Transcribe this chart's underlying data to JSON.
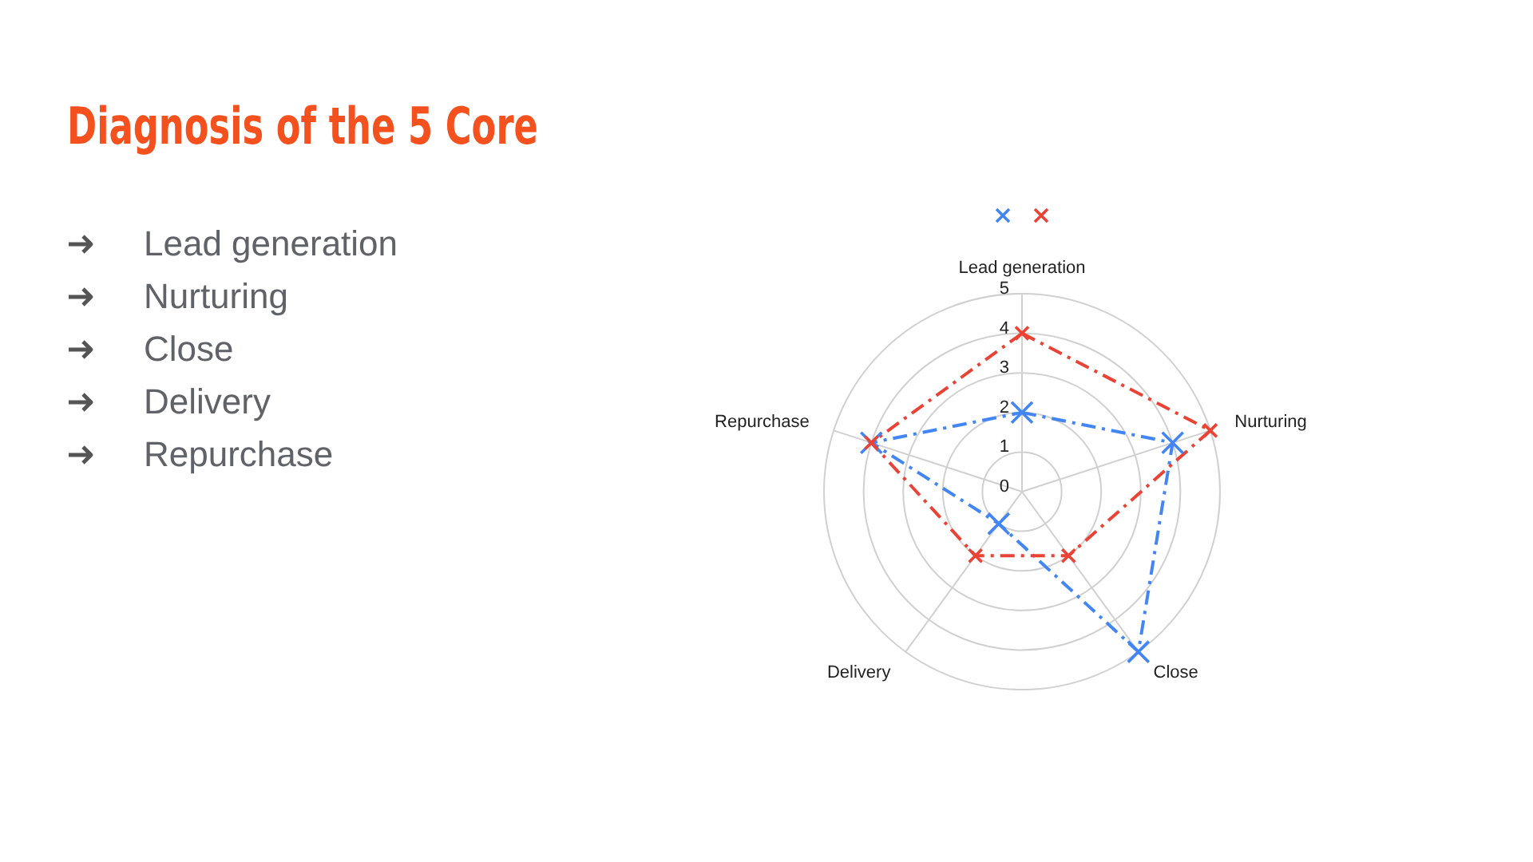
{
  "chart_data": {
    "type": "radar",
    "title": "Diagnosis of the 5 Core",
    "annotations": [
      "Lead generation",
      "Nurturing",
      "Close",
      "Delivery",
      "Repurchase"
    ],
    "categories": [
      "Lead generation",
      "Nurturing",
      "Close",
      "Delivery",
      "Repurchase"
    ],
    "series": [
      {
        "color": "#4285f4",
        "values": [
          2,
          4,
          5,
          1,
          4
        ]
      },
      {
        "color": "#ea4335",
        "values": [
          4,
          5,
          2,
          2,
          4
        ]
      }
    ],
    "ylim": [
      0,
      5
    ],
    "yticks": [
      0,
      1,
      2,
      3,
      4,
      5
    ],
    "grid": true,
    "marker": "cross",
    "line_style": "dashed"
  }
}
